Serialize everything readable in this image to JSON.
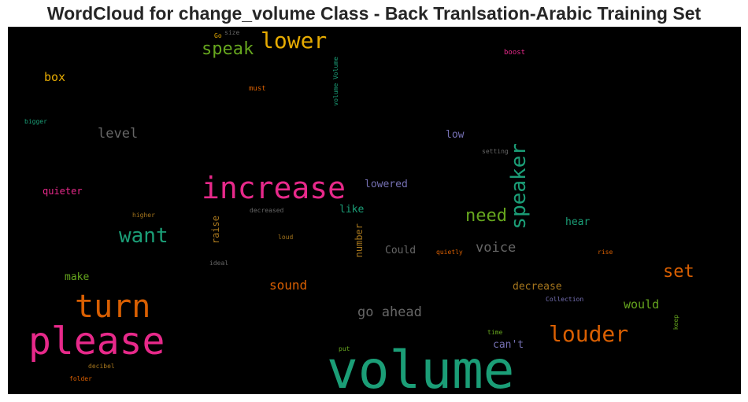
{
  "chart_data": {
    "type": "wordcloud",
    "title": "WordCloud for change_volume Class - Back Tranlsation-Arabic Training Set",
    "background": "#000000",
    "colors": {
      "green": "#1b9e77",
      "orange": "#d95f02",
      "purple": "#7570b3",
      "pink": "#e7298a",
      "lime": "#66a61e",
      "gold": "#e6ab02",
      "brown": "#a6761d",
      "gray": "#666666"
    },
    "words": [
      {
        "text": "volume",
        "color": "green"
      },
      {
        "text": "please",
        "color": "pink"
      },
      {
        "text": "turn",
        "color": "orange"
      },
      {
        "text": "increase",
        "color": "pink"
      },
      {
        "text": "louder",
        "color": "orange"
      },
      {
        "text": "lower",
        "color": "gold"
      },
      {
        "text": "speaker",
        "color": "green"
      },
      {
        "text": "want",
        "color": "green"
      },
      {
        "text": "speak",
        "color": "lime"
      },
      {
        "text": "need",
        "color": "lime"
      },
      {
        "text": "set",
        "color": "orange"
      },
      {
        "text": "go ahead",
        "color": "gray"
      },
      {
        "text": "voice",
        "color": "gray"
      },
      {
        "text": "sound",
        "color": "orange"
      },
      {
        "text": "would",
        "color": "lime"
      },
      {
        "text": "level",
        "color": "gray"
      },
      {
        "text": "box",
        "color": "gold"
      },
      {
        "text": "decrease",
        "color": "brown"
      },
      {
        "text": "Could",
        "color": "gray"
      },
      {
        "text": "lowered",
        "color": "purple"
      },
      {
        "text": "can't",
        "color": "purple"
      },
      {
        "text": "hear",
        "color": "green"
      },
      {
        "text": "low",
        "color": "purple"
      },
      {
        "text": "like",
        "color": "green"
      },
      {
        "text": "make",
        "color": "lime"
      },
      {
        "text": "quieter",
        "color": "pink"
      },
      {
        "text": "raise",
        "color": "brown"
      },
      {
        "text": "number",
        "color": "brown"
      },
      {
        "text": "boost",
        "color": "pink"
      },
      {
        "text": "must",
        "color": "orange"
      },
      {
        "text": "bigger",
        "color": "green"
      },
      {
        "text": "setting",
        "color": "gray"
      },
      {
        "text": "higher",
        "color": "brown"
      },
      {
        "text": "decreased",
        "color": "gray"
      },
      {
        "text": "loud",
        "color": "brown"
      },
      {
        "text": "ideal",
        "color": "gray"
      },
      {
        "text": "quietly",
        "color": "orange"
      },
      {
        "text": "rise",
        "color": "orange"
      },
      {
        "text": "Collection",
        "color": "purple"
      },
      {
        "text": "time",
        "color": "lime"
      },
      {
        "text": "keep",
        "color": "lime"
      },
      {
        "text": "put",
        "color": "lime"
      },
      {
        "text": "decibel",
        "color": "brown"
      },
      {
        "text": "folder",
        "color": "orange"
      },
      {
        "text": "Go",
        "color": "gold"
      },
      {
        "text": "size",
        "color": "gray"
      },
      {
        "text": "volume Volume",
        "color": "green"
      }
    ]
  }
}
